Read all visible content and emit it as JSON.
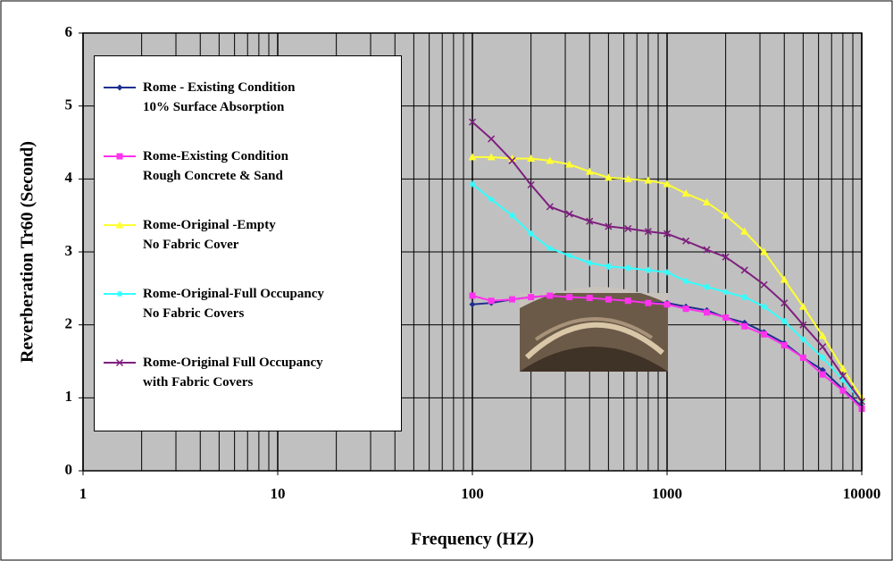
{
  "chart_data": {
    "type": "line",
    "x_label": "Frequency (HZ)",
    "y_label": "Reverberation Tr60 (Second)",
    "xscale": "log",
    "grid": true,
    "legend": "upper left",
    "xlim": [
      1,
      10000
    ],
    "xticks": [
      1,
      10,
      100,
      1000,
      10000
    ],
    "ylim": [
      0,
      6
    ],
    "yticks": [
      0,
      1,
      2,
      3,
      4,
      5,
      6
    ],
    "x": [
      100,
      125,
      160,
      200,
      250,
      315,
      400,
      500,
      630,
      800,
      1000,
      1250,
      1600,
      2000,
      2500,
      3150,
      4000,
      5000,
      6300,
      8000,
      10000
    ],
    "series": [
      {
        "name": "Rome - Existing Condition\n10% Surface Absorption",
        "color": "#1f2f8f",
        "marker": "diamond",
        "values": [
          2.28,
          2.3,
          2.35,
          2.38,
          2.4,
          2.38,
          2.37,
          2.35,
          2.33,
          2.3,
          2.3,
          2.25,
          2.2,
          2.1,
          2.03,
          1.9,
          1.75,
          1.55,
          1.38,
          1.12,
          0.88
        ]
      },
      {
        "name": "Rome-Existing Condition\nRough Concrete & Sand",
        "color": "#ff33ee",
        "marker": "square",
        "values": [
          2.4,
          2.33,
          2.35,
          2.38,
          2.4,
          2.38,
          2.37,
          2.35,
          2.33,
          2.3,
          2.28,
          2.22,
          2.17,
          2.1,
          1.98,
          1.87,
          1.72,
          1.55,
          1.32,
          1.1,
          0.85
        ]
      },
      {
        "name": "Rome-Original -Empty\nNo Fabric Cover",
        "color": "#ffff33",
        "marker": "triangle",
        "values": [
          4.3,
          4.3,
          4.28,
          4.28,
          4.25,
          4.2,
          4.1,
          4.02,
          4.0,
          3.98,
          3.93,
          3.8,
          3.68,
          3.5,
          3.28,
          3.0,
          2.62,
          2.25,
          1.85,
          1.4,
          1.0
        ]
      },
      {
        "name": "Rome-Original-Full Occupancy\nNo Fabric Covers",
        "color": "#33ffff",
        "marker": "star",
        "values": [
          3.93,
          3.72,
          3.5,
          3.25,
          3.05,
          2.95,
          2.85,
          2.8,
          2.78,
          2.75,
          2.72,
          2.6,
          2.52,
          2.45,
          2.38,
          2.25,
          2.05,
          1.8,
          1.55,
          1.25,
          0.95
        ]
      },
      {
        "name": "Rome-Original Full Occupancy\nwith Fabric Covers",
        "color": "#7f1f7f",
        "marker": "x",
        "values": [
          4.78,
          4.55,
          4.25,
          3.92,
          3.62,
          3.52,
          3.42,
          3.35,
          3.32,
          3.28,
          3.25,
          3.15,
          3.03,
          2.93,
          2.75,
          2.55,
          2.3,
          2.0,
          1.7,
          1.3,
          0.95
        ]
      }
    ]
  }
}
